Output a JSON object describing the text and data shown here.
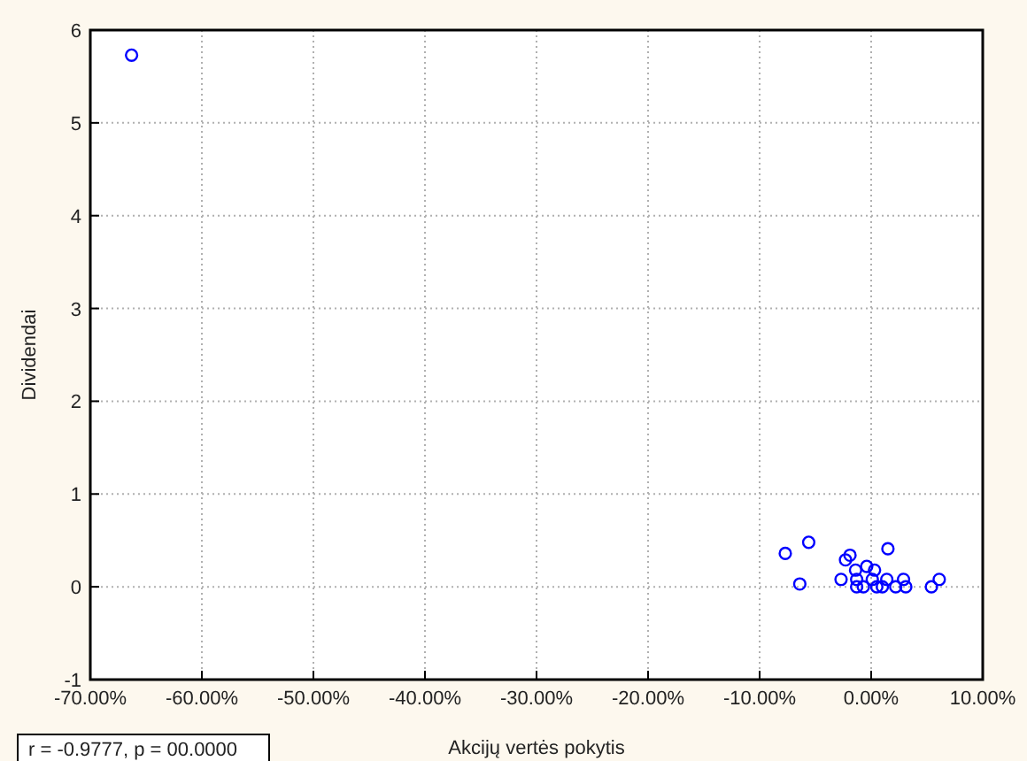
{
  "chart_data": {
    "type": "scatter",
    "xlabel": "Akcijų vertės pokytis",
    "ylabel": "Dividendai",
    "annotations": [
      "r = -0.9777, p = 00.0000"
    ],
    "xlim": [
      -70,
      10
    ],
    "ylim": [
      -1,
      6
    ],
    "xticks": [
      {
        "value": -70,
        "label": "-70.00%"
      },
      {
        "value": -60,
        "label": "-60.00%"
      },
      {
        "value": -50,
        "label": "-50.00%"
      },
      {
        "value": -40,
        "label": "-40.00%"
      },
      {
        "value": -30,
        "label": "-30.00%"
      },
      {
        "value": -20,
        "label": "-20.00%"
      },
      {
        "value": -10,
        "label": "-10.00%"
      },
      {
        "value": 0,
        "label": "0.00%"
      },
      {
        "value": 10,
        "label": "10.00%"
      }
    ],
    "yticks": [
      -1,
      0,
      1,
      2,
      3,
      4,
      5,
      6
    ],
    "grid": true,
    "marker": "circle",
    "series": [
      {
        "color": "#0000ff",
        "x": [
          -66.3,
          -7.7,
          -5.6,
          -6.4,
          -2.7,
          -2.3,
          -1.9,
          -1.4,
          -0.4,
          0.3,
          1.5,
          -1.3,
          -1.3,
          -0.7,
          0.1,
          0.5,
          1.0,
          1.4,
          2.2,
          2.9,
          3.1,
          5.4,
          6.1
        ],
        "values": [
          5.73,
          0.36,
          0.48,
          0.03,
          0.08,
          0.29,
          0.34,
          0.18,
          0.22,
          0.18,
          0.41,
          0.08,
          0.0,
          0.0,
          0.08,
          0.0,
          0.0,
          0.08,
          0.0,
          0.08,
          0.0,
          0.0,
          0.08
        ]
      }
    ]
  }
}
